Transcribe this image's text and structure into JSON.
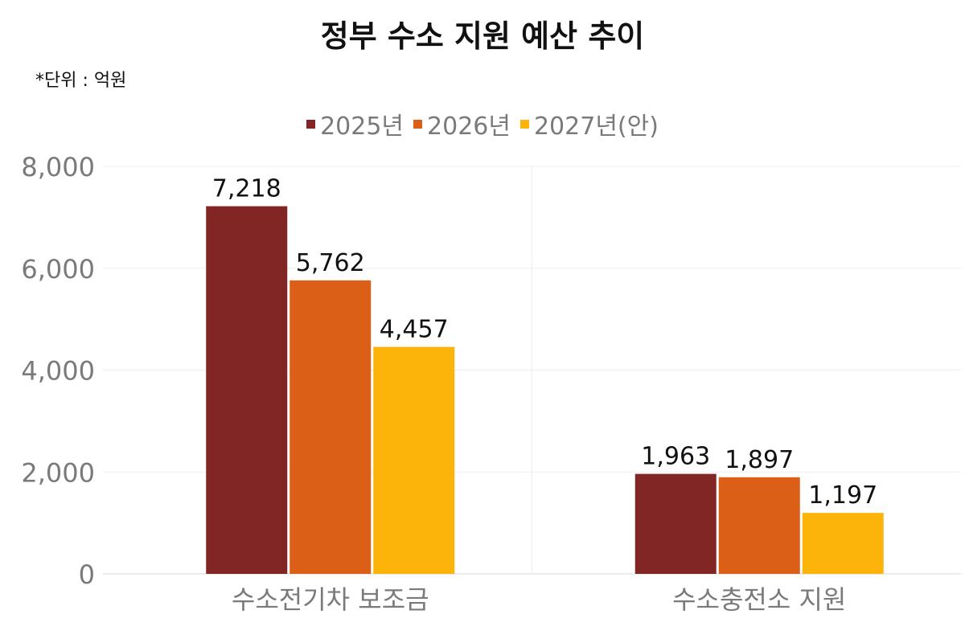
{
  "chart_data": {
    "type": "bar",
    "title": "정부 수소 지원 예산 추이",
    "subtitle": "*단위 : 억원",
    "categories": [
      "수소전기차 보조금",
      "수소충전소 지원"
    ],
    "series": [
      {
        "name": "2025년",
        "color": "#822525",
        "values": [
          7218,
          1963
        ],
        "labels": [
          "7,218",
          "1,963"
        ]
      },
      {
        "name": "2026년",
        "color": "#DC5F18",
        "values": [
          5762,
          1897
        ],
        "labels": [
          "5,762",
          "1,897"
        ]
      },
      {
        "name": "2027년(안)",
        "color": "#FDB40A",
        "values": [
          4457,
          1197
        ],
        "labels": [
          "4,457",
          "1,197"
        ]
      }
    ],
    "yticks": [
      "0",
      "2,000",
      "4,000",
      "6,000",
      "8,000"
    ],
    "ytick_values": [
      0,
      2000,
      4000,
      6000,
      8000
    ],
    "ylim": [
      0,
      8000
    ],
    "xlabel": "",
    "ylabel": "",
    "grid": true,
    "legend_position": "top-center"
  }
}
